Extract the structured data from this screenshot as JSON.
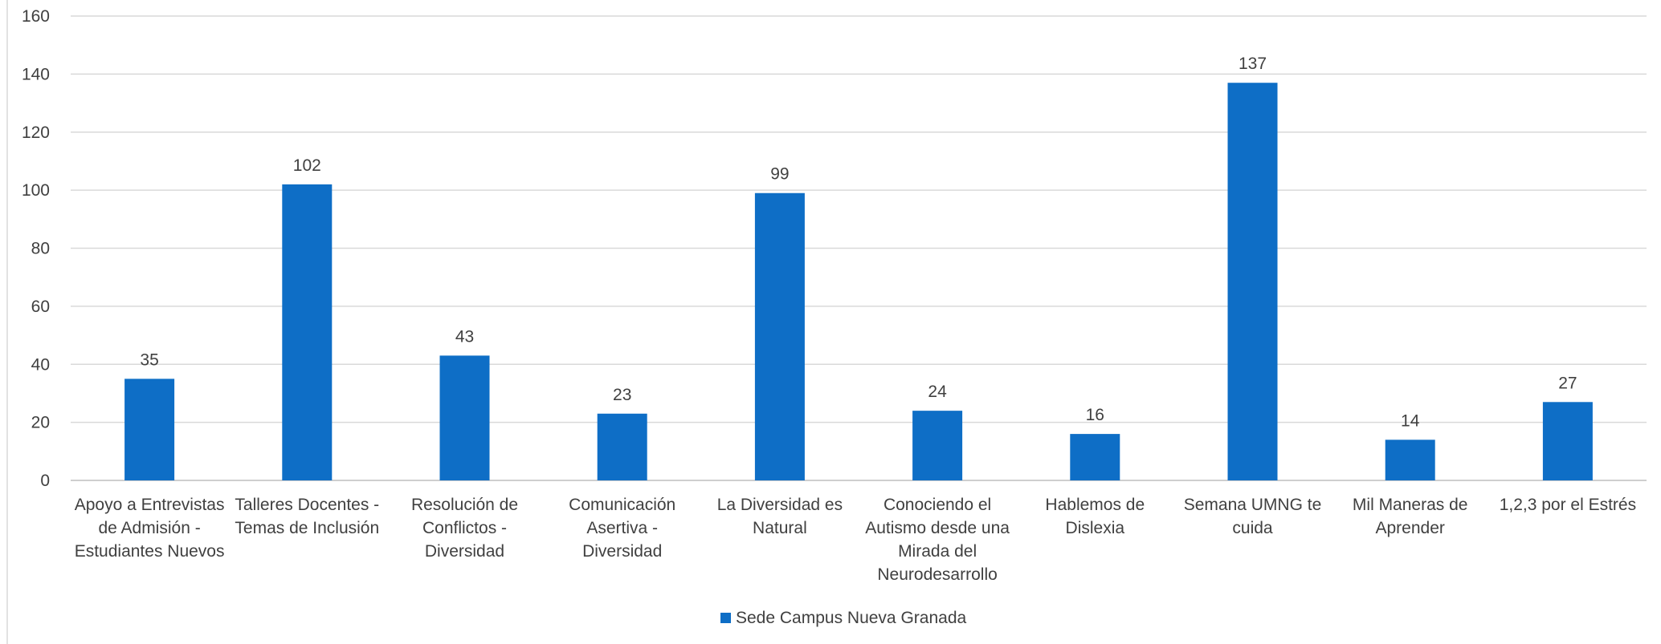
{
  "chart_data": {
    "type": "bar",
    "categories": [
      "Apoyo a Entrevistas de Admisión - Estudiantes Nuevos",
      "Talleres Docentes - Temas de Inclusión",
      "Resolución de Conflictos - Diversidad",
      "Comunicación Asertiva - Diversidad",
      "La Diversidad es Natural",
      "Conociendo el Autismo desde una Mirada del Neurodesarrollo",
      "Hablemos de Dislexia",
      "Semana UMNG te cuida",
      "Mil Maneras de Aprender",
      "1,2,3 por el Estrés"
    ],
    "category_lines": [
      [
        "Apoyo a Entrevistas",
        "de Admisión -",
        "Estudiantes Nuevos"
      ],
      [
        "Talleres Docentes -",
        "Temas de Inclusión"
      ],
      [
        "Resolución de",
        "Conflictos -",
        "Diversidad"
      ],
      [
        "Comunicación",
        "Asertiva -",
        "Diversidad"
      ],
      [
        "La Diversidad es",
        "Natural"
      ],
      [
        "Conociendo el",
        "Autismo desde una",
        "Mirada del",
        "Neurodesarrollo"
      ],
      [
        "Hablemos de",
        "Dislexia"
      ],
      [
        "Semana UMNG te",
        "cuida"
      ],
      [
        "Mil Maneras de",
        "Aprender"
      ],
      [
        "1,2,3 por el Estrés"
      ]
    ],
    "series": [
      {
        "name": "Sede Campus Nueva Granada",
        "values": [
          35,
          102,
          43,
          23,
          99,
          24,
          16,
          137,
          14,
          27
        ],
        "color": "#0E6EC6"
      }
    ],
    "yticks": [
      0,
      20,
      40,
      60,
      80,
      100,
      120,
      140,
      160
    ],
    "ylim": [
      0,
      160
    ],
    "title": "",
    "xlabel": "",
    "ylabel": "",
    "grid": true,
    "legend_position": "bottom",
    "data_labels": true
  }
}
